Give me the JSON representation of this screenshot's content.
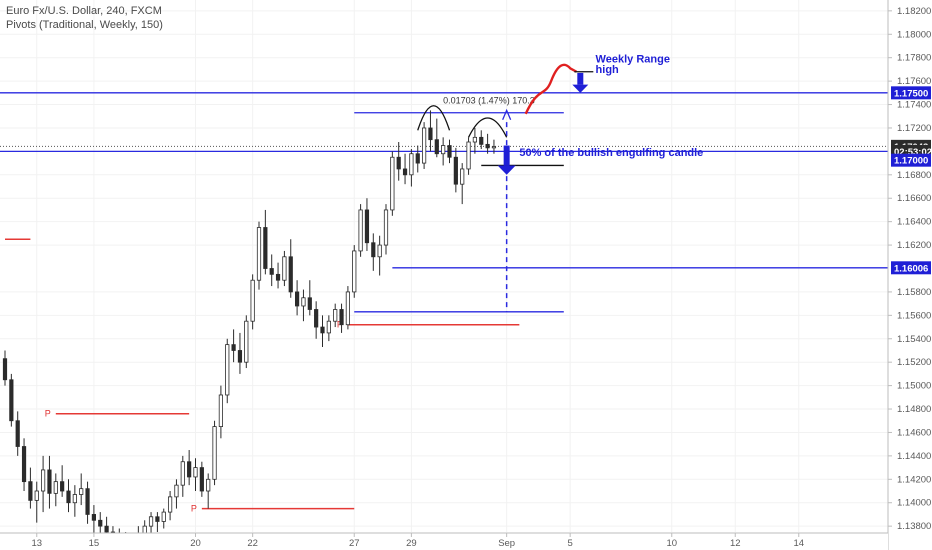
{
  "header": {
    "title": "Euro Fx/U.S. Dollar, 240, FXCM",
    "indicator": "Pivots (Traditional, Weekly, 150)"
  },
  "chart_data": {
    "type": "candlestick",
    "symbol": "Euro Fx/U.S. Dollar",
    "timeframe": "240",
    "ylim": [
      1.1375,
      1.1825
    ],
    "y_ticks": [
      "1.18200",
      "1.18000",
      "1.17800",
      "1.17600",
      "1.17400",
      "1.17200",
      "1.16800",
      "1.16600",
      "1.16400",
      "1.16200",
      "1.15800",
      "1.15600",
      "1.15400",
      "1.15200",
      "1.15000",
      "1.14800",
      "1.14600",
      "1.14400",
      "1.14200",
      "1.14000",
      "1.13800"
    ],
    "x_ticks": [
      {
        "label": "13",
        "slot": 5
      },
      {
        "label": "15",
        "slot": 14
      },
      {
        "label": "20",
        "slot": 30
      },
      {
        "label": "22",
        "slot": 39
      },
      {
        "label": "27",
        "slot": 55
      },
      {
        "label": "29",
        "slot": 64
      },
      {
        "label": "Sep",
        "slot": 79
      },
      {
        "label": "5",
        "slot": 89
      },
      {
        "label": "10",
        "slot": 105
      },
      {
        "label": "12",
        "slot": 115
      },
      {
        "label": "14",
        "slot": 125
      }
    ],
    "candles": [
      [
        1.1523,
        1.153,
        1.15,
        1.1505
      ],
      [
        1.1505,
        1.151,
        1.1465,
        1.147
      ],
      [
        1.147,
        1.1478,
        1.144,
        1.1448
      ],
      [
        1.1448,
        1.1455,
        1.141,
        1.1418
      ],
      [
        1.1418,
        1.143,
        1.1395,
        1.1402
      ],
      [
        1.1402,
        1.1418,
        1.1383,
        1.141
      ],
      [
        1.141,
        1.144,
        1.1392,
        1.1428
      ],
      [
        1.1428,
        1.144,
        1.1395,
        1.1408
      ],
      [
        1.1408,
        1.1425,
        1.1397,
        1.1418
      ],
      [
        1.1418,
        1.1432,
        1.1405,
        1.141
      ],
      [
        1.141,
        1.142,
        1.1392,
        1.14
      ],
      [
        1.14,
        1.1415,
        1.1388,
        1.1407
      ],
      [
        1.1407,
        1.1425,
        1.1398,
        1.1412
      ],
      [
        1.1412,
        1.1418,
        1.1382,
        1.139
      ],
      [
        1.139,
        1.1398,
        1.137,
        1.1385
      ],
      [
        1.1385,
        1.1392,
        1.1365,
        1.138
      ],
      [
        1.138,
        1.1388,
        1.1362,
        1.1375
      ],
      [
        1.1375,
        1.138,
        1.136,
        1.137
      ],
      [
        1.137,
        1.1378,
        1.1358,
        1.1368
      ],
      [
        1.1368,
        1.1375,
        1.1355,
        1.1365
      ],
      [
        1.1365,
        1.1372,
        1.1352,
        1.1362
      ],
      [
        1.1362,
        1.138,
        1.1355,
        1.1372
      ],
      [
        1.1372,
        1.1385,
        1.1365,
        1.138
      ],
      [
        1.138,
        1.1392,
        1.137,
        1.1388
      ],
      [
        1.1388,
        1.1392,
        1.1375,
        1.1384
      ],
      [
        1.1384,
        1.1395,
        1.1378,
        1.1392
      ],
      [
        1.1392,
        1.141,
        1.1385,
        1.1405
      ],
      [
        1.1405,
        1.142,
        1.1395,
        1.1415
      ],
      [
        1.1415,
        1.144,
        1.1405,
        1.1435
      ],
      [
        1.1435,
        1.1445,
        1.1415,
        1.1422
      ],
      [
        1.1422,
        1.1438,
        1.141,
        1.143
      ],
      [
        1.143,
        1.1435,
        1.1405,
        1.141
      ],
      [
        1.141,
        1.1425,
        1.1395,
        1.142
      ],
      [
        1.142,
        1.147,
        1.1415,
        1.1465
      ],
      [
        1.1465,
        1.15,
        1.1455,
        1.1492
      ],
      [
        1.1492,
        1.154,
        1.1485,
        1.1535
      ],
      [
        1.1535,
        1.1548,
        1.152,
        1.153
      ],
      [
        1.153,
        1.1545,
        1.151,
        1.152
      ],
      [
        1.152,
        1.156,
        1.1515,
        1.1555
      ],
      [
        1.1555,
        1.1595,
        1.1548,
        1.159
      ],
      [
        1.159,
        1.164,
        1.1582,
        1.1635
      ],
      [
        1.1635,
        1.165,
        1.1595,
        1.16
      ],
      [
        1.16,
        1.1612,
        1.1585,
        1.1595
      ],
      [
        1.1595,
        1.1605,
        1.1583,
        1.159
      ],
      [
        1.159,
        1.1615,
        1.1585,
        1.161
      ],
      [
        1.161,
        1.1625,
        1.1575,
        1.158
      ],
      [
        1.158,
        1.159,
        1.156,
        1.1568
      ],
      [
        1.1568,
        1.1582,
        1.1555,
        1.1575
      ],
      [
        1.1575,
        1.159,
        1.156,
        1.1565
      ],
      [
        1.1565,
        1.1572,
        1.154,
        1.155
      ],
      [
        1.155,
        1.156,
        1.1533,
        1.1545
      ],
      [
        1.1545,
        1.156,
        1.1538,
        1.1555
      ],
      [
        1.1555,
        1.157,
        1.155,
        1.1565
      ],
      [
        1.1565,
        1.157,
        1.1545,
        1.1552
      ],
      [
        1.1552,
        1.1585,
        1.1548,
        1.158
      ],
      [
        1.158,
        1.162,
        1.1575,
        1.1615
      ],
      [
        1.1615,
        1.1655,
        1.161,
        1.165
      ],
      [
        1.165,
        1.166,
        1.1615,
        1.1622
      ],
      [
        1.1622,
        1.163,
        1.1598,
        1.161
      ],
      [
        1.161,
        1.1628,
        1.1594,
        1.162
      ],
      [
        1.162,
        1.1655,
        1.1612,
        1.165
      ],
      [
        1.165,
        1.17,
        1.1645,
        1.1695
      ],
      [
        1.1695,
        1.1708,
        1.1675,
        1.1685
      ],
      [
        1.1685,
        1.1698,
        1.1672,
        1.168
      ],
      [
        1.168,
        1.1702,
        1.167,
        1.1698
      ],
      [
        1.1698,
        1.1705,
        1.1682,
        1.169
      ],
      [
        1.169,
        1.1725,
        1.1685,
        1.172
      ],
      [
        1.172,
        1.1735,
        1.17,
        1.171
      ],
      [
        1.171,
        1.1728,
        1.1695,
        1.1698
      ],
      [
        1.1698,
        1.1712,
        1.1688,
        1.1705
      ],
      [
        1.1705,
        1.171,
        1.169,
        1.1695
      ],
      [
        1.1695,
        1.1703,
        1.1665,
        1.1672
      ],
      [
        1.1672,
        1.169,
        1.1655,
        1.1685
      ],
      [
        1.1685,
        1.1712,
        1.168,
        1.1708
      ],
      [
        1.1708,
        1.172,
        1.1698,
        1.1712
      ],
      [
        1.1712,
        1.1718,
        1.1702,
        1.1706
      ],
      [
        1.1706,
        1.1715,
        1.1698,
        1.1703
      ],
      [
        1.1703,
        1.171,
        1.1698,
        1.1704
      ]
    ],
    "horizontal_lines": [
      {
        "value": 1.175,
        "color": "#2a2ae0"
      },
      {
        "value": 1.17,
        "color": "#2a2ae0"
      },
      {
        "value": 1.16006,
        "color": "#2a2ae0"
      }
    ],
    "price_badges": [
      {
        "label": "1.17500",
        "value": 1.175,
        "color": "#1f1fd6"
      },
      {
        "label": "1.17043",
        "value": 1.17043,
        "color": "#2b2b2b"
      },
      {
        "label": "02:53:02",
        "value": 1.17,
        "color": "#2b2b2b"
      },
      {
        "label": "1.17000",
        "value": 1.16925,
        "color": "#1f1fd6"
      },
      {
        "label": "1.16006",
        "value": 1.16006,
        "color": "#1f1fd6"
      }
    ],
    "pivots": [
      {
        "label": "P",
        "value": 1.1476,
        "from_slot": 8,
        "to_slot": 29
      },
      {
        "label": "P",
        "value": 1.1395,
        "from_slot": 31,
        "to_slot": 55
      },
      {
        "label": "P",
        "value": 1.1552,
        "from_slot": 54,
        "to_slot": 81
      }
    ],
    "stray_red_segment": {
      "value": 1.1625,
      "from_slot": 0,
      "to_slot": 4
    },
    "measure_box": {
      "top": 1.1733,
      "bottom": 1.1563,
      "from_slot": 55,
      "to_slot": 88
    },
    "annotations": {
      "measure_label": "0.01703 (1.47%) 170.3",
      "weekly_range": "Weekly Range\nhigh",
      "engulfing": "50% of the bullish engulfing candle"
    }
  },
  "colors": {
    "up": "#ffffff",
    "down": "#2b2b2b",
    "blue": "#2a2ae0",
    "red": "#e53935",
    "grid": "#f2f2f2"
  }
}
